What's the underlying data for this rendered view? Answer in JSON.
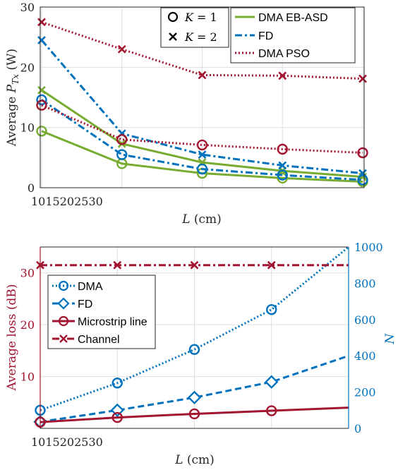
{
  "colors": {
    "green": "#77AC30",
    "blue": "#0072BD",
    "darkred": "#A2142F",
    "teal_right_axis": "#0072BD",
    "left_axis2": "#A2142F"
  },
  "chart_data": [
    {
      "type": "line",
      "x": [
        10,
        15,
        20,
        25,
        30
      ],
      "xlabel": "L (cm)",
      "ylabel": "Average P_Tx (W)",
      "ylim": [
        0,
        30
      ],
      "yticks": [
        0,
        10,
        20,
        30
      ],
      "xtick_labels": [
        "10",
        "15",
        "20",
        "25",
        "30"
      ],
      "xticks_text": "1015202530",
      "grid": true,
      "legend_markers": [
        {
          "marker": "circle",
          "label": "K = 1"
        },
        {
          "marker": "x",
          "label": "K = 2"
        }
      ],
      "legend_lines": [
        {
          "style": "solid",
          "color": "#77AC30",
          "label": "DMA EB-ASD"
        },
        {
          "style": "dashdot",
          "color": "#0072BD",
          "label": "FD"
        },
        {
          "style": "dotted",
          "color": "#A2142F",
          "label": "DMA PSO"
        }
      ],
      "series": [
        {
          "method": "DMA EB-ASD",
          "K": 1,
          "marker": "circle",
          "color": "#77AC30",
          "style": "solid",
          "values": [
            9.4,
            4.0,
            2.4,
            1.6,
            1.0
          ]
        },
        {
          "method": "DMA EB-ASD",
          "K": 2,
          "marker": "x",
          "color": "#77AC30",
          "style": "solid",
          "values": [
            16.2,
            7.3,
            4.2,
            2.8,
            1.8
          ]
        },
        {
          "method": "FD",
          "K": 1,
          "marker": "circle",
          "color": "#0072BD",
          "style": "dashdot",
          "values": [
            14.6,
            5.5,
            3.1,
            2.1,
            1.3
          ]
        },
        {
          "method": "FD",
          "K": 2,
          "marker": "x",
          "color": "#0072BD",
          "style": "dashdot",
          "values": [
            24.5,
            9.0,
            5.5,
            3.7,
            2.4
          ]
        },
        {
          "method": "DMA PSO",
          "K": 1,
          "marker": "circle",
          "color": "#A2142F",
          "style": "dotted",
          "values": [
            13.7,
            8.0,
            7.1,
            6.4,
            5.8
          ]
        },
        {
          "method": "DMA PSO",
          "K": 2,
          "marker": "x",
          "color": "#A2142F",
          "style": "dotted",
          "values": [
            27.5,
            23.0,
            18.7,
            18.6,
            18.1
          ]
        }
      ]
    },
    {
      "type": "line",
      "x": [
        10,
        15,
        20,
        25,
        30
      ],
      "xlabel": "L (cm)",
      "ylabel_left": "Average loss (dB)",
      "ylabel_right": "N",
      "ylim_left": [
        0,
        35
      ],
      "yticks_left": [
        10,
        20,
        30
      ],
      "ylim_right": [
        0,
        1000
      ],
      "yticks_right": [
        0,
        200,
        400,
        600,
        800,
        1000
      ],
      "xtick_labels": [
        "10",
        "15",
        "20",
        "25",
        "30"
      ],
      "xticks_text": "1015202530",
      "grid": true,
      "legend": [
        "DMA",
        "FD",
        "Microstrip line",
        "Channel"
      ],
      "series": [
        {
          "name": "DMA",
          "axis": "right",
          "marker": "circle",
          "color": "#0072BD",
          "style": "dotted",
          "x": [
            10,
            15,
            20,
            25,
            30
          ],
          "values": [
            100,
            250,
            435,
            655,
            1000
          ],
          "marker_count": 4
        },
        {
          "name": "FD",
          "axis": "right",
          "marker": "diamond",
          "color": "#0072BD",
          "style": "dashed",
          "x": [
            10,
            15,
            20,
            25,
            30
          ],
          "values": [
            36,
            100,
            170,
            256,
            400
          ],
          "marker_count": 4
        },
        {
          "name": "Microstrip line",
          "axis": "left",
          "marker": "circle",
          "color": "#A2142F",
          "style": "solid",
          "x": [
            10,
            15,
            20,
            25,
            30
          ],
          "values": [
            1.2,
            2.1,
            2.8,
            3.4,
            4.0
          ],
          "marker_count": 4
        },
        {
          "name": "Channel",
          "axis": "left",
          "marker": "x",
          "color": "#A2142F",
          "style": "dashdot",
          "x": [
            10,
            15,
            20,
            25,
            30
          ],
          "values": [
            31.5,
            31.5,
            31.5,
            31.5,
            31.5
          ],
          "marker_count": 4
        }
      ]
    }
  ]
}
